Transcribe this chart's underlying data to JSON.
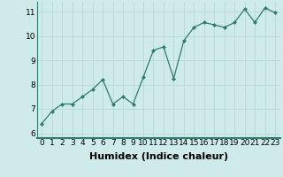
{
  "x": [
    0,
    1,
    2,
    3,
    4,
    5,
    6,
    7,
    8,
    9,
    10,
    11,
    12,
    13,
    14,
    15,
    16,
    17,
    18,
    19,
    20,
    21,
    22,
    23
  ],
  "y": [
    6.4,
    6.9,
    7.2,
    7.2,
    7.5,
    7.8,
    8.2,
    7.2,
    7.5,
    7.2,
    8.3,
    9.4,
    9.55,
    8.25,
    9.8,
    10.35,
    10.55,
    10.45,
    10.35,
    10.55,
    11.1,
    10.55,
    11.15,
    10.95
  ],
  "xlabel": "Humidex (Indice chaleur)",
  "ylim": [
    5.8,
    11.4
  ],
  "xlim": [
    -0.5,
    23.5
  ],
  "yticks": [
    6,
    7,
    8,
    9,
    10,
    11
  ],
  "xticks": [
    0,
    1,
    2,
    3,
    4,
    5,
    6,
    7,
    8,
    9,
    10,
    11,
    12,
    13,
    14,
    15,
    16,
    17,
    18,
    19,
    20,
    21,
    22,
    23
  ],
  "line_color": "#2e7d6e",
  "marker_color": "#2e7d6e",
  "bg_color": "#ceeaea",
  "grid_color": "#b8d8d8",
  "axes_bg": "#ceeaea",
  "tick_label_size": 6.5,
  "xlabel_size": 8,
  "xlabel_weight": "bold"
}
